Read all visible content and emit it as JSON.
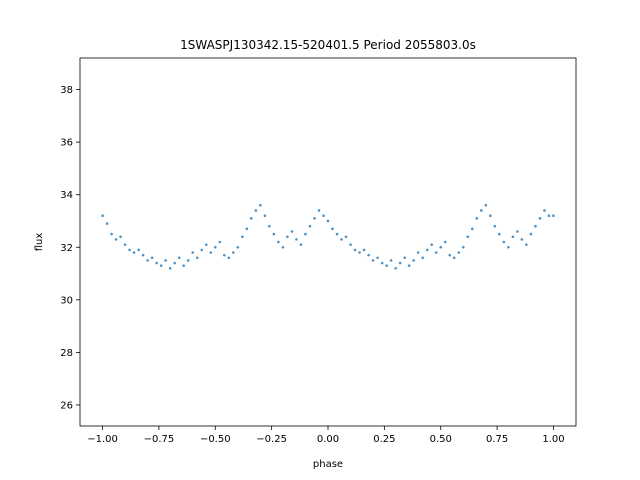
{
  "chart_data": {
    "type": "scatter",
    "title": "1SWASPJ130342.15-520401.5 Period 2055803.0s",
    "xlabel": "phase",
    "ylabel": "flux",
    "xlim": [
      -1.1,
      1.1
    ],
    "ylim": [
      25.2,
      39.2
    ],
    "grid": false,
    "legend": "none",
    "marker_color": "#1f77b4",
    "x_ticks": [
      -1.0,
      -0.75,
      -0.5,
      -0.25,
      0.0,
      0.25,
      0.5,
      0.75,
      1.0
    ],
    "x_tick_labels": [
      "−1.00",
      "−0.75",
      "−0.50",
      "−0.25",
      "0.00",
      "0.25",
      "0.50",
      "0.75",
      "1.00"
    ],
    "y_ticks": [
      26,
      28,
      30,
      32,
      34,
      36,
      38
    ],
    "y_tick_labels": [
      "26",
      "28",
      "30",
      "32",
      "34",
      "36",
      "38"
    ],
    "series": [
      {
        "x": [
          -1.0,
          -0.98,
          -0.96,
          -0.94,
          -0.92,
          -0.9,
          -0.88,
          -0.86,
          -0.84,
          -0.82,
          -0.8,
          -0.78,
          -0.76,
          -0.74,
          -0.72,
          -0.7,
          -0.68,
          -0.66,
          -0.64,
          -0.62,
          -0.6,
          -0.58,
          -0.56,
          -0.54,
          -0.52,
          -0.5,
          -0.48,
          -0.46,
          -0.44,
          -0.42,
          -0.4,
          -0.38,
          -0.36,
          -0.34,
          -0.32,
          -0.3,
          -0.28,
          -0.26,
          -0.24,
          -0.22,
          -0.2,
          -0.18,
          -0.16,
          -0.14,
          -0.12,
          -0.1,
          -0.08,
          -0.06,
          -0.04,
          -0.02,
          0.0,
          0.02,
          0.04,
          0.06,
          0.08,
          0.1,
          0.12,
          0.14,
          0.16,
          0.18,
          0.2,
          0.22,
          0.24,
          0.26,
          0.28,
          0.3,
          0.32,
          0.34,
          0.36,
          0.38,
          0.4,
          0.42,
          0.44,
          0.46,
          0.48,
          0.5,
          0.52,
          0.54,
          0.56,
          0.58,
          0.6,
          0.62,
          0.64,
          0.66,
          0.68,
          0.7,
          0.72,
          0.74,
          0.76,
          0.78,
          0.8,
          0.82,
          0.84,
          0.86,
          0.88,
          0.9,
          0.92,
          0.94,
          0.96,
          0.98,
          1.0
        ],
        "y": [
          33.2,
          32.9,
          32.5,
          32.3,
          32.4,
          32.1,
          31.9,
          31.8,
          31.9,
          31.7,
          31.5,
          31.6,
          31.4,
          31.3,
          31.5,
          31.2,
          31.4,
          31.6,
          31.3,
          31.5,
          31.8,
          31.6,
          31.9,
          32.1,
          31.8,
          32.0,
          32.2,
          31.7,
          31.6,
          31.8,
          32.0,
          32.4,
          32.7,
          33.1,
          33.4,
          33.6,
          33.2,
          32.8,
          32.5,
          32.2,
          32.0,
          32.4,
          32.6,
          32.3,
          32.1,
          32.5,
          32.8,
          33.1,
          33.4,
          33.2,
          33.0,
          32.7,
          32.5,
          32.3,
          32.4,
          32.1,
          31.9,
          31.8,
          31.9,
          31.7,
          31.5,
          31.6,
          31.4,
          31.3,
          31.5,
          31.2,
          31.4,
          31.6,
          31.3,
          31.5,
          31.8,
          31.6,
          31.9,
          32.1,
          31.8,
          32.0,
          32.2,
          31.7,
          31.6,
          31.8,
          32.0,
          32.4,
          32.7,
          33.1,
          33.4,
          33.6,
          33.2,
          32.8,
          32.5,
          32.2,
          32.0,
          32.4,
          32.6,
          32.3,
          32.1,
          32.5,
          32.8,
          33.1,
          33.4,
          33.2,
          33.2
        ]
      }
    ]
  }
}
